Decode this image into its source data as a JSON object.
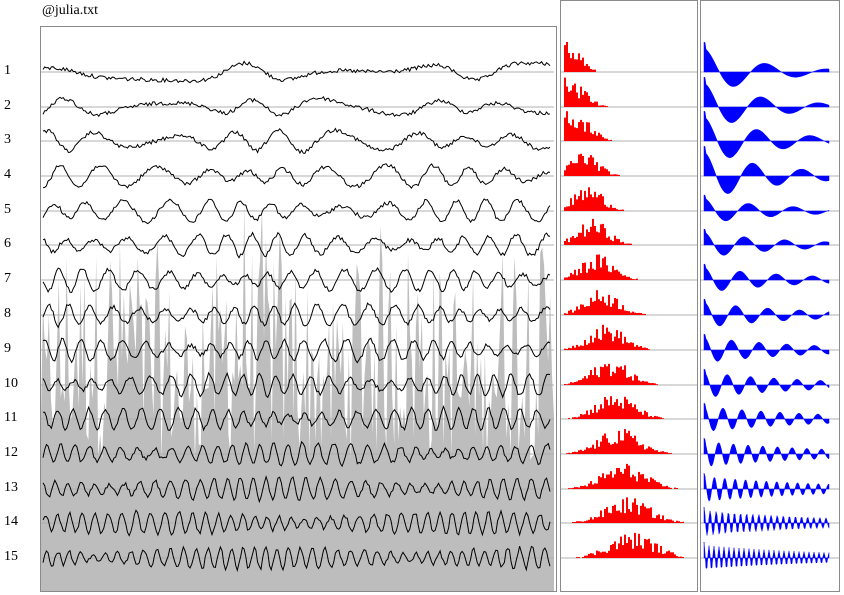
{
  "header": {
    "filename": "@julia.txt"
  },
  "chart_data": [
    {
      "type": "line",
      "panel": "signal-components",
      "series_labels": [
        "1",
        "2",
        "3",
        "4",
        "5",
        "6",
        "7",
        "8",
        "9",
        "10",
        "11",
        "12",
        "13",
        "14",
        "15"
      ],
      "background_series": "original signal (gray filled)",
      "colors": {
        "line": "#000000",
        "fill": "#bdbdbd",
        "baseline": "#b0b0b0"
      }
    },
    {
      "type": "bar",
      "panel": "spectra",
      "series_labels": [
        "1",
        "2",
        "3",
        "4",
        "5",
        "6",
        "7",
        "8",
        "9",
        "10",
        "11",
        "12",
        "13",
        "14",
        "15"
      ],
      "colors": {
        "bar": "#ff0000"
      }
    },
    {
      "type": "area",
      "panel": "autocorrelation",
      "series_labels": [
        "1",
        "2",
        "3",
        "4",
        "5",
        "6",
        "7",
        "8",
        "9",
        "10",
        "11",
        "12",
        "13",
        "14",
        "15"
      ],
      "colors": {
        "fill": "#0000ff"
      }
    }
  ]
}
